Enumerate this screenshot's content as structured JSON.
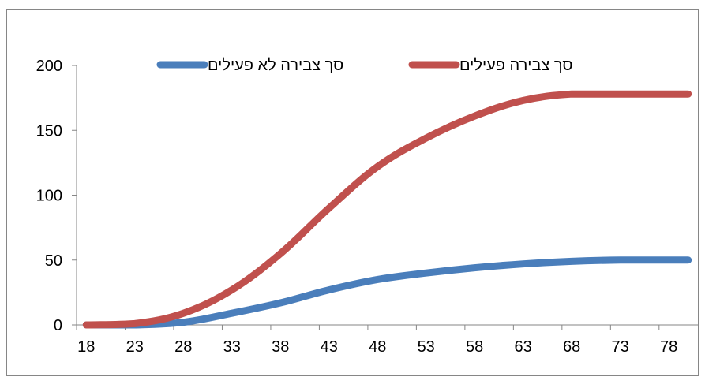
{
  "chart_data": {
    "type": "line",
    "title": "",
    "xlabel": "",
    "ylabel": "",
    "x": [
      18,
      23,
      28,
      33,
      38,
      43,
      48,
      53,
      58,
      63,
      68,
      73,
      78,
      80
    ],
    "xticks": [
      "18",
      "23",
      "28",
      "33",
      "38",
      "43",
      "48",
      "53",
      "58",
      "63",
      "68",
      "73",
      "78"
    ],
    "yticks": [
      "0",
      "50",
      "100",
      "150",
      "200"
    ],
    "ylim": [
      0,
      200
    ],
    "xlim": [
      17,
      81
    ],
    "grid": false,
    "legend_position": "top",
    "series": [
      {
        "name": "סך צבירה לא פעילים",
        "color": "#4A7EBB",
        "values": [
          0,
          0,
          2,
          9,
          17,
          27,
          35,
          40,
          44,
          47,
          49,
          50,
          50,
          50
        ]
      },
      {
        "name": "סך צבירה פעילים",
        "color": "#C0504D",
        "values": [
          0,
          1,
          9,
          27,
          55,
          90,
          122,
          144,
          161,
          173,
          178,
          178,
          178,
          178
        ]
      }
    ]
  }
}
